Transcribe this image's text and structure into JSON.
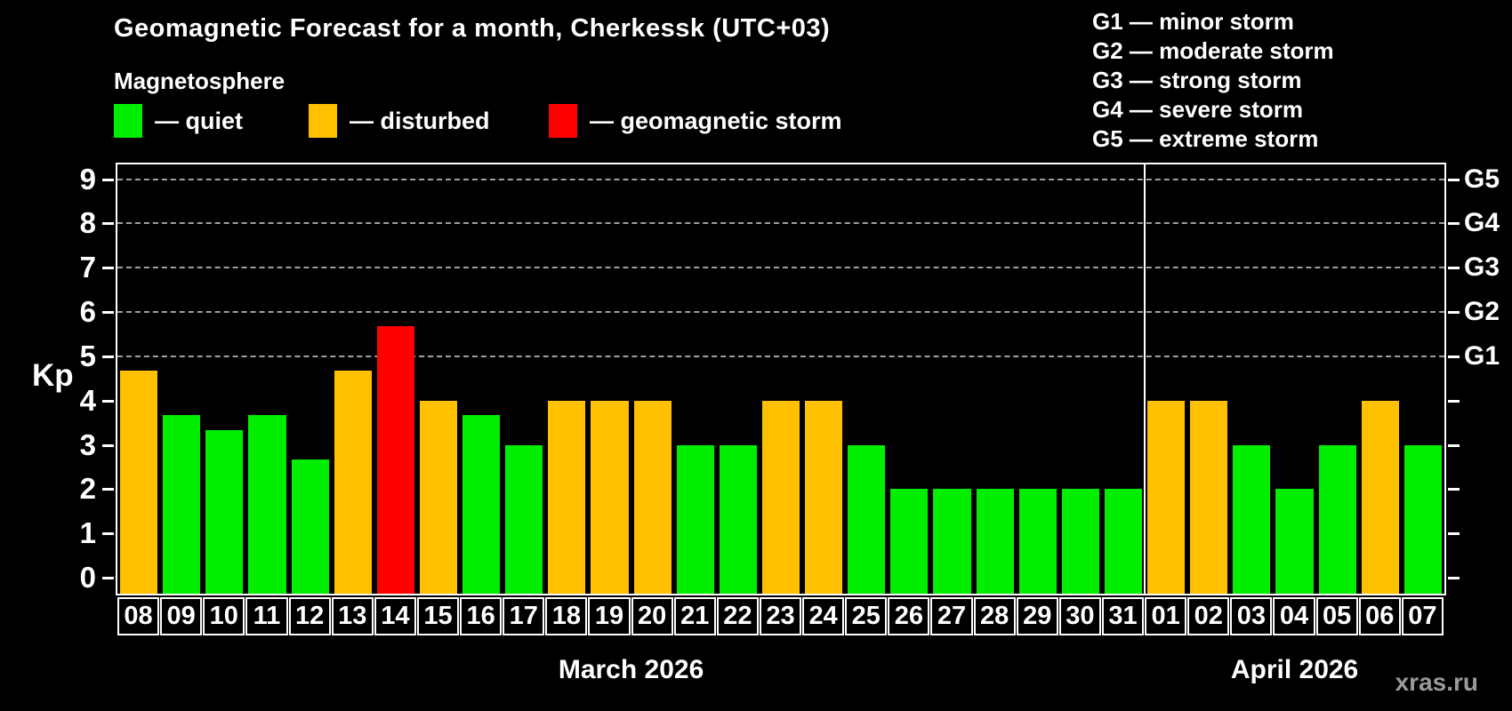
{
  "title": "Geomagnetic Forecast for a month, Cherkessk (UTC+03)",
  "subtitle": "Magnetosphere",
  "legend": {
    "items": [
      {
        "label": "— quiet",
        "status": "quiet"
      },
      {
        "label": "— disturbed",
        "status": "disturbed"
      },
      {
        "label": "— geomagnetic storm",
        "status": "storm"
      }
    ]
  },
  "g_legend": {
    "items": [
      {
        "label": "G1 — minor storm"
      },
      {
        "label": "G2 — moderate storm"
      },
      {
        "label": "G3 — strong storm"
      },
      {
        "label": "G4 — severe storm"
      },
      {
        "label": "G5 — extreme storm"
      }
    ]
  },
  "colors": {
    "quiet": "#00ee00",
    "disturbed": "#ffc000",
    "storm": "#ff0000",
    "grid": "#9f9f9f",
    "watermark": "#9a9a9a"
  },
  "axis": {
    "ylabel": "Kp",
    "yticks": [
      0,
      1,
      2,
      3,
      4,
      5,
      6,
      7,
      8,
      9
    ],
    "grid_kp": [
      5,
      6,
      7,
      8,
      9
    ],
    "right_labels": [
      {
        "kp": 5,
        "label": "G1"
      },
      {
        "kp": 6,
        "label": "G2"
      },
      {
        "kp": 7,
        "label": "G3"
      },
      {
        "kp": 8,
        "label": "G4"
      },
      {
        "kp": 9,
        "label": "G5"
      }
    ]
  },
  "months": [
    {
      "label": "March 2026"
    },
    {
      "label": "April 2026"
    }
  ],
  "watermark": "xras.ru",
  "chart_data": {
    "type": "bar",
    "title": "Geomagnetic Forecast for a month, Cherkessk (UTC+03)",
    "xlabel": "",
    "ylabel": "Kp",
    "ylim": [
      0,
      9.4
    ],
    "grid": "dashed horizontal at Kp 5-9",
    "legend_position": "top-left and top-right",
    "bars": [
      {
        "day": "08",
        "month": 0,
        "value": 4.67,
        "status": "disturbed"
      },
      {
        "day": "09",
        "month": 0,
        "value": 3.67,
        "status": "quiet"
      },
      {
        "day": "10",
        "month": 0,
        "value": 3.33,
        "status": "quiet"
      },
      {
        "day": "11",
        "month": 0,
        "value": 3.67,
        "status": "quiet"
      },
      {
        "day": "12",
        "month": 0,
        "value": 2.67,
        "status": "quiet"
      },
      {
        "day": "13",
        "month": 0,
        "value": 4.67,
        "status": "disturbed"
      },
      {
        "day": "14",
        "month": 0,
        "value": 5.67,
        "status": "storm"
      },
      {
        "day": "15",
        "month": 0,
        "value": 4.0,
        "status": "disturbed"
      },
      {
        "day": "16",
        "month": 0,
        "value": 3.67,
        "status": "quiet"
      },
      {
        "day": "17",
        "month": 0,
        "value": 3.0,
        "status": "quiet"
      },
      {
        "day": "18",
        "month": 0,
        "value": 4.0,
        "status": "disturbed"
      },
      {
        "day": "19",
        "month": 0,
        "value": 4.0,
        "status": "disturbed"
      },
      {
        "day": "20",
        "month": 0,
        "value": 4.0,
        "status": "disturbed"
      },
      {
        "day": "21",
        "month": 0,
        "value": 3.0,
        "status": "quiet"
      },
      {
        "day": "22",
        "month": 0,
        "value": 3.0,
        "status": "quiet"
      },
      {
        "day": "23",
        "month": 0,
        "value": 4.0,
        "status": "disturbed"
      },
      {
        "day": "24",
        "month": 0,
        "value": 4.0,
        "status": "disturbed"
      },
      {
        "day": "25",
        "month": 0,
        "value": 3.0,
        "status": "quiet"
      },
      {
        "day": "26",
        "month": 0,
        "value": 2.0,
        "status": "quiet"
      },
      {
        "day": "27",
        "month": 0,
        "value": 2.0,
        "status": "quiet"
      },
      {
        "day": "28",
        "month": 0,
        "value": 2.0,
        "status": "quiet"
      },
      {
        "day": "29",
        "month": 0,
        "value": 2.0,
        "status": "quiet"
      },
      {
        "day": "30",
        "month": 0,
        "value": 2.0,
        "status": "quiet"
      },
      {
        "day": "31",
        "month": 0,
        "value": 2.0,
        "status": "quiet"
      },
      {
        "day": "01",
        "month": 1,
        "value": 4.0,
        "status": "disturbed"
      },
      {
        "day": "02",
        "month": 1,
        "value": 4.0,
        "status": "disturbed"
      },
      {
        "day": "03",
        "month": 1,
        "value": 3.0,
        "status": "quiet"
      },
      {
        "day": "04",
        "month": 1,
        "value": 2.0,
        "status": "quiet"
      },
      {
        "day": "05",
        "month": 1,
        "value": 3.0,
        "status": "quiet"
      },
      {
        "day": "06",
        "month": 1,
        "value": 4.0,
        "status": "disturbed"
      },
      {
        "day": "07",
        "month": 1,
        "value": 3.0,
        "status": "quiet"
      }
    ]
  }
}
